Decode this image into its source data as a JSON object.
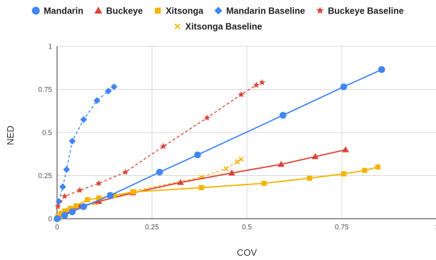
{
  "chart_data": {
    "type": "scatter",
    "xlabel": "COV",
    "ylabel": "NED",
    "xlim": [
      0,
      1
    ],
    "ylim": [
      0,
      1
    ],
    "x_ticks": [
      0,
      0.25,
      0.5,
      0.75,
      1
    ],
    "y_ticks": [
      0,
      0.25,
      0.5,
      0.75,
      1
    ],
    "x_tick_labels": [
      "0",
      "0.25",
      "0.5",
      "0.75",
      "1"
    ],
    "y_tick_labels": [
      "0",
      "0.25",
      "0.5",
      "0.75",
      "1"
    ],
    "grid": true,
    "legend_position": "top",
    "series": [
      {
        "name": "Mandarin",
        "color": "#4285f4",
        "marker": "circle",
        "line": "solid",
        "points": [
          [
            0,
            0
          ],
          [
            0.02,
            0.02
          ],
          [
            0.04,
            0.04
          ],
          [
            0.07,
            0.07
          ],
          [
            0.14,
            0.135
          ],
          [
            0.27,
            0.27
          ],
          [
            0.37,
            0.37
          ],
          [
            0.595,
            0.6
          ],
          [
            0.755,
            0.765
          ],
          [
            0.855,
            0.865
          ]
        ]
      },
      {
        "name": "Buckeye",
        "color": "#db4437",
        "marker": "triangle",
        "line": "solid",
        "points": [
          [
            0.002,
            0.005
          ],
          [
            0.02,
            0.025
          ],
          [
            0.04,
            0.05
          ],
          [
            0.06,
            0.07
          ],
          [
            0.11,
            0.1
          ],
          [
            0.2,
            0.15
          ],
          [
            0.325,
            0.21
          ],
          [
            0.46,
            0.265
          ],
          [
            0.59,
            0.315
          ],
          [
            0.68,
            0.36
          ],
          [
            0.76,
            0.4
          ]
        ]
      },
      {
        "name": "Xitsonga",
        "color": "#f4b400",
        "marker": "square",
        "line": "solid",
        "points": [
          [
            0.002,
            0.01
          ],
          [
            0.01,
            0.03
          ],
          [
            0.02,
            0.045
          ],
          [
            0.035,
            0.06
          ],
          [
            0.05,
            0.075
          ],
          [
            0.08,
            0.11
          ],
          [
            0.11,
            0.12
          ],
          [
            0.15,
            0.135
          ],
          [
            0.2,
            0.155
          ],
          [
            0.38,
            0.18
          ],
          [
            0.545,
            0.205
          ],
          [
            0.665,
            0.235
          ],
          [
            0.755,
            0.26
          ],
          [
            0.81,
            0.28
          ],
          [
            0.845,
            0.3
          ]
        ]
      },
      {
        "name": "Mandarin Baseline",
        "color": "#4285f4",
        "marker": "diamond",
        "line": "dashed",
        "points": [
          [
            0.005,
            0.1
          ],
          [
            0.015,
            0.185
          ],
          [
            0.025,
            0.285
          ],
          [
            0.04,
            0.45
          ],
          [
            0.07,
            0.575
          ],
          [
            0.105,
            0.685
          ],
          [
            0.135,
            0.74
          ],
          [
            0.15,
            0.765
          ]
        ]
      },
      {
        "name": "Buckeye Baseline",
        "color": "#db4437",
        "marker": "star",
        "line": "dashed",
        "points": [
          [
            0.002,
            0.07
          ],
          [
            0.02,
            0.13
          ],
          [
            0.06,
            0.165
          ],
          [
            0.11,
            0.205
          ],
          [
            0.18,
            0.27
          ],
          [
            0.28,
            0.42
          ],
          [
            0.395,
            0.585
          ],
          [
            0.485,
            0.72
          ],
          [
            0.525,
            0.775
          ],
          [
            0.54,
            0.79
          ]
        ]
      },
      {
        "name": "Xitsonga Baseline",
        "color": "#f4b400",
        "marker": "x",
        "line": "dashed",
        "points": [
          [
            0.002,
            0.02
          ],
          [
            0.03,
            0.05
          ],
          [
            0.1,
            0.09
          ],
          [
            0.2,
            0.16
          ],
          [
            0.38,
            0.24
          ],
          [
            0.445,
            0.29
          ],
          [
            0.475,
            0.33
          ],
          [
            0.485,
            0.345
          ]
        ]
      }
    ]
  }
}
